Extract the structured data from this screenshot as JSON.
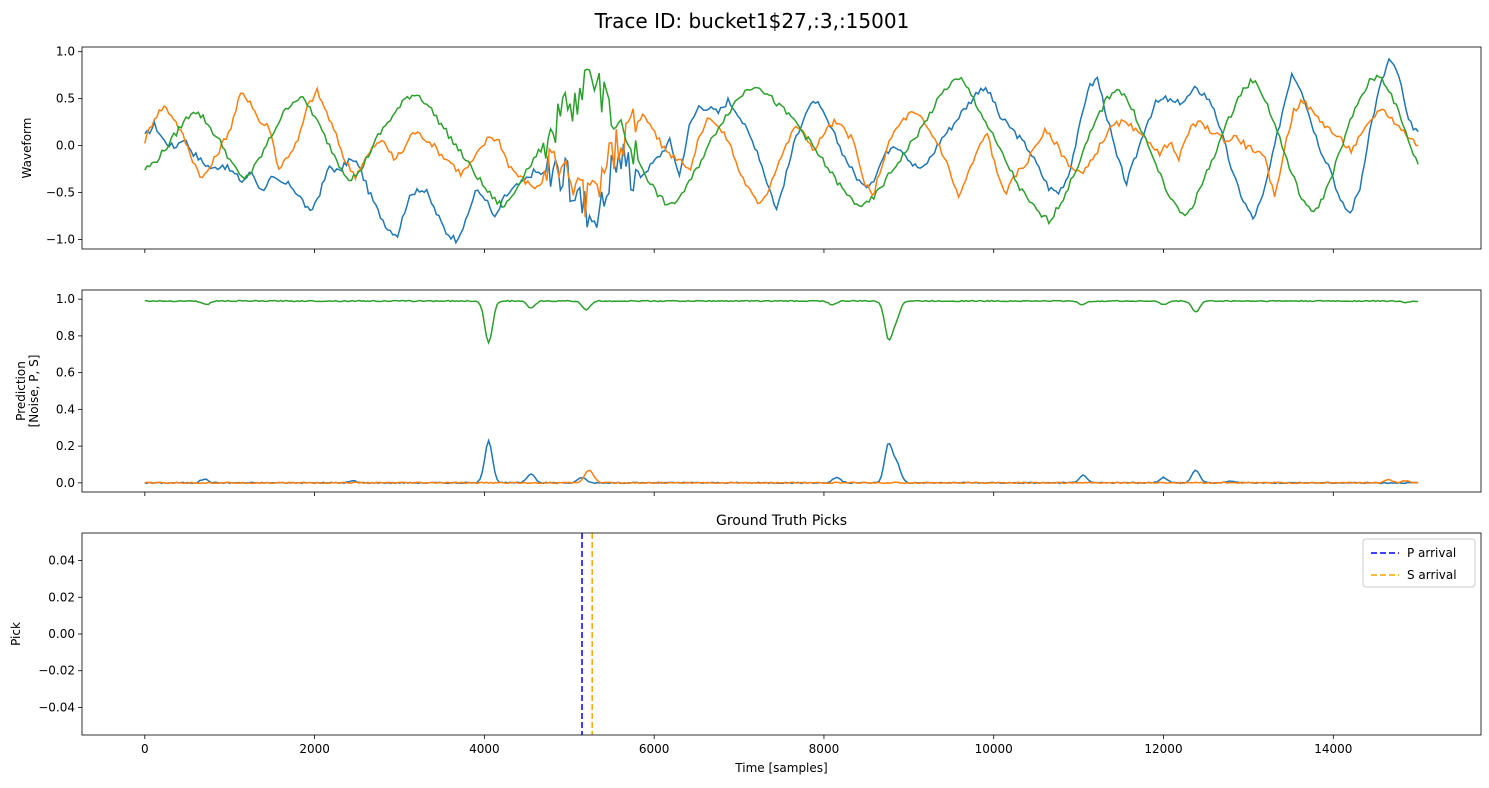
{
  "figure": {
    "title": "Trace ID: bucket1$27,:3,:15001"
  },
  "chart_data": [
    {
      "type": "line",
      "panel": "waveform",
      "title": "",
      "xlabel": "",
      "ylabel": "Waveform",
      "xlim": [
        -740,
        15740
      ],
      "ylim": [
        -1.1,
        1.05
      ],
      "yticks": [
        -1.0,
        -0.5,
        0.0,
        0.5,
        1.0
      ],
      "ytick_labels": [
        "−1.0",
        "−0.5",
        "0.0",
        "0.5",
        "1.0"
      ],
      "xticks": [
        0,
        2000,
        4000,
        6000,
        8000,
        10000,
        12000,
        14000
      ],
      "show_xtick_labels": false,
      "grid": false,
      "colors": [
        "#1f77b4",
        "#ff7f0e",
        "#2ca02c"
      ],
      "series": [
        {
          "values": [
            0.1,
            0.22,
            0.05,
            -0.02,
            0.08,
            -0.08,
            -0.18,
            -0.25,
            -0.2,
            -0.28,
            -0.38,
            -0.28,
            -0.48,
            -0.35,
            -0.4,
            -0.42,
            -0.55,
            -0.72,
            -0.5,
            -0.22,
            -0.28,
            -0.15,
            -0.2,
            -0.48,
            -0.7,
            -0.88,
            -0.95,
            -0.6,
            -0.45,
            -0.5,
            -0.72,
            -0.92,
            -1.0,
            -0.82,
            -0.48,
            -0.55,
            -0.78,
            -0.55,
            -0.45,
            -0.38,
            -0.28,
            -0.3,
            -0.2,
            -0.32,
            -0.45,
            -0.6,
            -0.72,
            -0.65,
            -0.25,
            -0.1,
            -0.25,
            -0.32,
            -0.22,
            -0.1,
            0.05,
            -0.32,
            0.2,
            0.42,
            0.4,
            0.35,
            0.48,
            0.35,
            0.15,
            -0.05,
            -0.38,
            -0.68,
            -0.3,
            0.1,
            0.35,
            0.48,
            0.3,
            0.1,
            -0.12,
            -0.3,
            -0.45,
            -0.35,
            -0.12,
            0.02,
            -0.05,
            -0.2,
            -0.25,
            -0.1,
            0.08,
            0.2,
            0.35,
            0.48,
            0.62,
            0.55,
            0.3,
            0.2,
            0.08,
            -0.05,
            -0.25,
            -0.45,
            -0.5,
            -0.32,
            0.12,
            0.6,
            0.72,
            0.3,
            -0.12,
            -0.4,
            -0.1,
            0.22,
            0.45,
            0.5,
            0.45,
            0.48,
            0.6,
            0.55,
            0.4,
            0.05,
            -0.32,
            -0.58,
            -0.78,
            -0.55,
            -0.12,
            0.35,
            0.78,
            0.6,
            0.25,
            -0.05,
            -0.25,
            -0.6,
            -0.72,
            -0.45,
            0.15,
            0.6,
            0.92,
            0.75,
            0.25,
            0.15
          ]
        },
        {
          "values": [
            0.05,
            0.3,
            0.42,
            0.3,
            0.1,
            -0.15,
            -0.35,
            -0.2,
            0.0,
            0.2,
            0.55,
            0.48,
            0.25,
            0.2,
            -0.25,
            -0.1,
            0.05,
            0.42,
            0.58,
            0.35,
            0.1,
            -0.18,
            -0.32,
            -0.15,
            0.0,
            0.05,
            -0.15,
            -0.05,
            0.15,
            0.1,
            0.02,
            -0.1,
            -0.18,
            -0.3,
            -0.2,
            -0.05,
            0.1,
            0.05,
            -0.2,
            -0.32,
            -0.4,
            -0.45,
            -0.3,
            -0.15,
            -0.3,
            -0.45,
            -0.6,
            -0.48,
            -0.2,
            -0.05,
            0.1,
            0.25,
            0.32,
            0.2,
            0.0,
            -0.1,
            -0.15,
            -0.25,
            0.12,
            0.32,
            0.18,
            0.05,
            -0.25,
            -0.45,
            -0.62,
            -0.5,
            -0.22,
            0.0,
            0.22,
            0.1,
            -0.05,
            0.15,
            0.25,
            0.18,
            0.05,
            -0.35,
            -0.55,
            -0.2,
            0.1,
            0.25,
            0.35,
            0.3,
            0.15,
            0.0,
            -0.25,
            -0.55,
            -0.3,
            -0.05,
            0.15,
            -0.3,
            -0.5,
            -0.3,
            -0.2,
            0.0,
            0.15,
            0.05,
            -0.12,
            -0.25,
            -0.3,
            -0.15,
            0.05,
            0.2,
            0.25,
            0.2,
            0.1,
            0.05,
            -0.1,
            0.05,
            -0.15,
            0.15,
            0.25,
            0.18,
            0.12,
            0.05,
            0.1,
            0.0,
            -0.05,
            -0.15,
            -0.55,
            -0.05,
            0.38,
            0.48,
            0.35,
            0.25,
            0.15,
            0.05,
            -0.05,
            0.1,
            0.25,
            0.4,
            0.32,
            0.2,
            0.1,
            0.0
          ]
        },
        {
          "values": [
            -0.25,
            -0.18,
            -0.05,
            0.1,
            0.25,
            0.38,
            0.3,
            0.15,
            0.0,
            -0.2,
            -0.35,
            -0.28,
            -0.1,
            0.1,
            0.3,
            0.45,
            0.52,
            0.4,
            0.2,
            0.0,
            -0.2,
            -0.35,
            -0.3,
            -0.1,
            0.1,
            0.25,
            0.38,
            0.52,
            0.55,
            0.45,
            0.3,
            0.15,
            0.0,
            -0.15,
            -0.3,
            -0.45,
            -0.58,
            -0.65,
            -0.5,
            -0.3,
            -0.15,
            0.0,
            0.15,
            0.3,
            0.48,
            0.6,
            0.72,
            0.6,
            0.4,
            0.2,
            0.0,
            -0.2,
            -0.4,
            -0.55,
            -0.65,
            -0.55,
            -0.4,
            -0.2,
            0.0,
            0.2,
            0.35,
            0.5,
            0.6,
            0.65,
            0.55,
            0.45,
            0.35,
            0.25,
            0.1,
            -0.05,
            -0.2,
            -0.35,
            -0.5,
            -0.6,
            -0.65,
            -0.55,
            -0.4,
            -0.25,
            -0.1,
            0.05,
            0.2,
            0.38,
            0.55,
            0.68,
            0.7,
            0.55,
            0.35,
            0.15,
            -0.05,
            -0.25,
            -0.45,
            -0.6,
            -0.72,
            -0.8,
            -0.65,
            -0.45,
            -0.2,
            0.05,
            0.3,
            0.5,
            0.62,
            0.5,
            0.3,
            0.05,
            -0.2,
            -0.45,
            -0.65,
            -0.75,
            -0.6,
            -0.35,
            -0.1,
            0.15,
            0.4,
            0.6,
            0.7,
            0.55,
            0.3,
            0.0,
            -0.3,
            -0.55,
            -0.72,
            -0.6,
            -0.35,
            -0.05,
            0.25,
            0.5,
            0.68,
            0.75,
            0.6,
            0.35,
            0.05,
            -0.2
          ]
        }
      ]
    },
    {
      "type": "line",
      "panel": "prediction",
      "title": "",
      "xlabel": "",
      "ylabel": "Prediction\n[Noise, P, S]",
      "xlim": [
        -740,
        15740
      ],
      "ylim": [
        -0.05,
        1.05
      ],
      "yticks": [
        0.0,
        0.2,
        0.4,
        0.6,
        0.8,
        1.0
      ],
      "ytick_labels": [
        "0.0",
        "0.2",
        "0.4",
        "0.6",
        "0.8",
        "1.0"
      ],
      "xticks": [
        0,
        2000,
        4000,
        6000,
        8000,
        10000,
        12000,
        14000
      ],
      "show_xtick_labels": false,
      "grid": false,
      "colors": [
        "#1f77b4",
        "#ff7f0e",
        "#2ca02c"
      ],
      "series": [
        {
          "baseline": 0.0,
          "peaks": [
            [
              700,
              0.02
            ],
            [
              2450,
              0.01
            ],
            [
              4050,
              0.23
            ],
            [
              4550,
              0.05
            ],
            [
              5150,
              0.03
            ],
            [
              8150,
              0.03
            ],
            [
              8760,
              0.21
            ],
            [
              8860,
              0.1
            ],
            [
              11050,
              0.04
            ],
            [
              12000,
              0.03
            ],
            [
              12380,
              0.07
            ],
            [
              12800,
              0.01
            ]
          ]
        },
        {
          "baseline": 0.0,
          "peaks": [
            [
              5250,
              0.05
            ],
            [
              5200,
              0.03
            ],
            [
              14650,
              0.02
            ],
            [
              14850,
              0.01
            ]
          ]
        },
        {
          "baseline": 0.99,
          "dips": [
            [
              720,
              0.97
            ],
            [
              4050,
              0.76
            ],
            [
              4550,
              0.95
            ],
            [
              5200,
              0.94
            ],
            [
              8100,
              0.97
            ],
            [
              8760,
              0.79
            ],
            [
              8850,
              0.9
            ],
            [
              11050,
              0.97
            ],
            [
              12000,
              0.97
            ],
            [
              12380,
              0.93
            ],
            [
              14850,
              0.98
            ]
          ]
        }
      ]
    },
    {
      "type": "line",
      "panel": "picks",
      "title": "Ground Truth Picks",
      "xlabel": "Time [samples]",
      "ylabel": "Pick",
      "xlim": [
        -740,
        15740
      ],
      "ylim": [
        -0.055,
        0.055
      ],
      "yticks": [
        -0.04,
        -0.02,
        0.0,
        0.02,
        0.04
      ],
      "ytick_labels": [
        "−0.04",
        "−0.02",
        "0.00",
        "0.02",
        "0.04"
      ],
      "xticks": [
        0,
        2000,
        4000,
        6000,
        8000,
        10000,
        12000,
        14000
      ],
      "xtick_labels": [
        "0",
        "2000",
        "4000",
        "6000",
        "8000",
        "10000",
        "12000",
        "14000"
      ],
      "grid": false,
      "legend_position": "top-right",
      "vlines": [
        {
          "name": "P arrival",
          "x": 5150,
          "color": "#0000ff",
          "style": "dashed"
        },
        {
          "name": "S arrival",
          "x": 5270,
          "color": "#ffa500",
          "style": "dashed"
        }
      ]
    }
  ]
}
